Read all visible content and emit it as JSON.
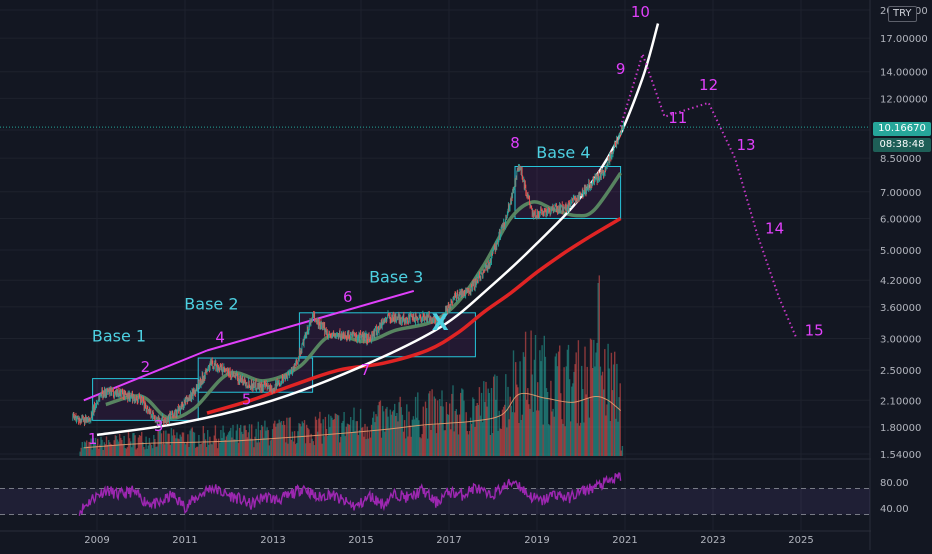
{
  "chart_data": [
    {
      "type": "line",
      "scale": "log",
      "x": [
        2008.5,
        2008.8,
        2009.1,
        2009.5,
        2010.0,
        2010.4,
        2010.8,
        2011.2,
        2011.6,
        2012.0,
        2012.5,
        2013.0,
        2013.5,
        2013.9,
        2014.3,
        2014.8,
        2015.2,
        2015.6,
        2016.0,
        2016.5,
        2016.8,
        2017.1,
        2017.5,
        2017.9,
        2018.3,
        2018.6,
        2018.9,
        2019.3,
        2019.7,
        2020.1,
        2020.5,
        2020.8,
        2020.95
      ],
      "y": [
        1.9,
        1.85,
        2.2,
        2.2,
        2.1,
        1.85,
        1.95,
        2.2,
        2.6,
        2.45,
        2.3,
        2.25,
        2.55,
        3.4,
        3.05,
        3.05,
        3.0,
        3.4,
        3.35,
        3.4,
        3.3,
        3.8,
        4.0,
        4.6,
        6.0,
        8.2,
        6.1,
        6.3,
        6.4,
        7.1,
        7.8,
        9.3,
        10.2
      ],
      "ma_fast": {
        "x": [
          2009.2,
          2010.0,
          2010.6,
          2011.2,
          2012.0,
          2012.8,
          2013.6,
          2014.3,
          2015.1,
          2015.8,
          2016.6,
          2017.2,
          2017.8,
          2018.4,
          2018.9,
          2019.4,
          2019.9,
          2020.3,
          2020.9
        ],
        "y": [
          2.05,
          2.15,
          1.9,
          2.0,
          2.45,
          2.35,
          2.55,
          3.05,
          2.95,
          3.15,
          3.3,
          3.7,
          4.6,
          6.0,
          6.6,
          6.3,
          6.1,
          6.3,
          7.8
        ]
      },
      "ma_slow": {
        "x": [
          2011.5,
          2012.5,
          2013.5,
          2014.5,
          2015.5,
          2016.5,
          2017.2,
          2017.8,
          2018.4,
          2019.0,
          2019.6,
          2020.2,
          2020.9
        ],
        "y": [
          1.95,
          2.1,
          2.3,
          2.5,
          2.6,
          2.8,
          3.1,
          3.5,
          3.9,
          4.4,
          4.9,
          5.4,
          6.0
        ]
      },
      "trend_curve": {
        "x": [
          2009.0,
          2011.0,
          2013.0,
          2015.0,
          2016.8,
          2018.0,
          2019.0,
          2020.0,
          2020.8,
          2021.4,
          2021.75
        ],
        "y": [
          1.72,
          1.85,
          2.1,
          2.55,
          3.2,
          4.1,
          5.2,
          6.8,
          9.3,
          13.5,
          18.5
        ]
      },
      "projection": {
        "x": [
          2020.9,
          2021.4,
          2021.9,
          2022.9,
          2023.5,
          2024.0,
          2024.5,
          2024.9
        ],
        "y": [
          10.2,
          15.5,
          10.8,
          11.7,
          8.5,
          5.5,
          3.8,
          3.0
        ]
      },
      "channel_upper": {
        "x": [
          2008.7,
          2011.5
        ],
        "y": [
          2.1,
          2.8
        ]
      },
      "channel_upper2": {
        "x": [
          2013.6,
          2016.2
        ],
        "y": [
          3.5,
          3.95
        ]
      },
      "boxes": [
        {
          "label": "Base 1",
          "x": [
            2008.9,
            2011.3
          ],
          "y": [
            1.87,
            2.38
          ]
        },
        {
          "label": "Base 2",
          "x": [
            2011.3,
            2013.9
          ],
          "y": [
            2.2,
            2.68
          ]
        },
        {
          "label": "Base 3",
          "x": [
            2013.6,
            2017.6
          ],
          "y": [
            2.7,
            3.48
          ]
        },
        {
          "label": "Base 4",
          "x": [
            2018.5,
            2020.9
          ],
          "y": [
            6.0,
            8.1
          ]
        }
      ],
      "wave_labels": [
        {
          "text": "1",
          "x": 2008.9,
          "y": 1.63
        },
        {
          "text": "2",
          "x": 2010.1,
          "y": 2.47
        },
        {
          "text": "3",
          "x": 2010.4,
          "y": 1.76
        },
        {
          "text": "4",
          "x": 2011.8,
          "y": 2.93
        },
        {
          "text": "5",
          "x": 2012.4,
          "y": 2.05
        },
        {
          "text": "6",
          "x": 2014.7,
          "y": 3.7
        },
        {
          "text": "7",
          "x": 2015.1,
          "y": 2.43
        },
        {
          "text": "8",
          "x": 2018.5,
          "y": 9.0
        },
        {
          "text": "9",
          "x": 2020.9,
          "y": 13.8
        },
        {
          "text": "10",
          "x": 2021.35,
          "y": 19.2
        },
        {
          "text": "11",
          "x": 2022.2,
          "y": 10.4
        },
        {
          "text": "12",
          "x": 2022.9,
          "y": 12.6
        },
        {
          "text": "13",
          "x": 2023.75,
          "y": 8.9
        },
        {
          "text": "14",
          "x": 2024.4,
          "y": 5.5
        },
        {
          "text": "15",
          "x": 2025.3,
          "y": 3.05
        }
      ],
      "x_marker": {
        "text": "X",
        "x": 2016.8,
        "y": 3.3
      },
      "y_ticks": [
        "1.54000",
        "1.80000",
        "2.10000",
        "2.50000",
        "3.00000",
        "3.60000",
        "4.20000",
        "5.00000",
        "6.00000",
        "7.00000",
        "8.50000",
        "10.00000",
        "12.00000",
        "14.00000",
        "17.00000",
        "20.00000"
      ],
      "y_tick_values": [
        1.54,
        1.8,
        2.1,
        2.5,
        3.0,
        3.6,
        4.2,
        5.0,
        6.0,
        7.0,
        8.5,
        10.0,
        12.0,
        14.0,
        17.0,
        20.0
      ],
      "x_ticks": [
        "2009",
        "2011",
        "2013",
        "2015",
        "2017",
        "2019",
        "2021",
        "2023",
        "2025"
      ],
      "x_tick_values": [
        2009,
        2011,
        2013,
        2015,
        2017,
        2019,
        2021,
        2023,
        2025
      ],
      "last_price": {
        "value": 10.1667,
        "label": "10.16670",
        "countdown": "08:38:48"
      },
      "currency": "TRY",
      "volume_ma": {
        "x": [
          2008.7,
          2010.0,
          2012.0,
          2014.0,
          2015.5,
          2016.5,
          2017.5,
          2018.2,
          2018.6,
          2019.2,
          2019.8,
          2020.3,
          2020.6,
          2020.9
        ],
        "y": [
          0.1,
          0.15,
          0.18,
          0.25,
          0.32,
          0.38,
          0.42,
          0.5,
          0.75,
          0.7,
          0.65,
          0.72,
          0.68,
          0.55
        ]
      },
      "colors": {
        "background": "#131722",
        "candle_up": "#26a69a",
        "candle_down": "#ef5350",
        "ma_fast": "#5b8a63",
        "ma_slow": "#e02424",
        "trend_curve": "#ffffff",
        "projection": "#c837c8",
        "box_base": "#26c6da",
        "magenta_label": "#e040fb",
        "cyan_label": "#4dd0e1",
        "rsi_line": "#9c27b0",
        "volume_ma": "#f0a070",
        "grid": "#1e222d",
        "last_price_line": "#26a69a"
      }
    },
    {
      "type": "line",
      "panel": "rsi",
      "x": [
        2008.6,
        2008.9,
        2009.2,
        2009.5,
        2009.8,
        2010.1,
        2010.4,
        2010.7,
        2011.0,
        2011.3,
        2011.6,
        2011.9,
        2012.2,
        2012.5,
        2012.8,
        2013.1,
        2013.4,
        2013.7,
        2014.0,
        2014.3,
        2014.6,
        2014.9,
        2015.2,
        2015.5,
        2015.8,
        2016.1,
        2016.4,
        2016.7,
        2017.0,
        2017.3,
        2017.6,
        2017.9,
        2018.2,
        2018.5,
        2018.8,
        2019.1,
        2019.4,
        2019.7,
        2020.0,
        2020.3,
        2020.6,
        2020.9
      ],
      "y": [
        35,
        55,
        68,
        60,
        66,
        50,
        45,
        60,
        42,
        58,
        72,
        62,
        55,
        45,
        58,
        52,
        60,
        72,
        55,
        62,
        50,
        42,
        58,
        46,
        62,
        55,
        68,
        48,
        65,
        60,
        72,
        58,
        70,
        82,
        60,
        50,
        62,
        55,
        65,
        72,
        80,
        88
      ],
      "y_ticks": [
        "80.00",
        "40.00"
      ],
      "y_tick_values": [
        80,
        40
      ],
      "bands": [
        70,
        30
      ]
    }
  ]
}
